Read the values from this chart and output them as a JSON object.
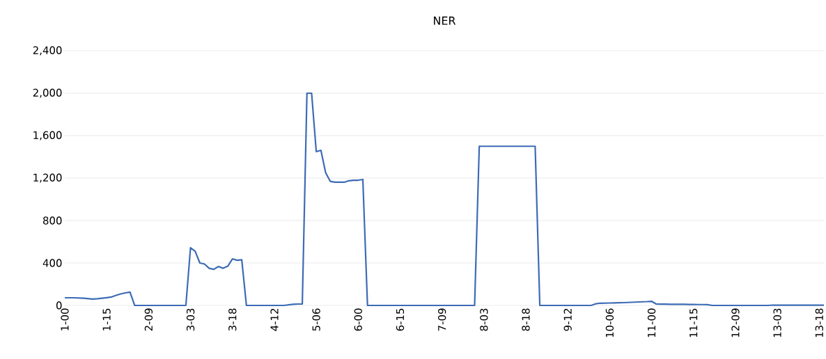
{
  "chart_data": {
    "type": "line",
    "title": "NER",
    "categories": [
      "1-00",
      null,
      null,
      null,
      null,
      null,
      null,
      null,
      null,
      "1-15",
      null,
      null,
      null,
      null,
      null,
      null,
      null,
      null,
      "2-09",
      null,
      null,
      null,
      null,
      null,
      null,
      null,
      null,
      "3-03",
      null,
      null,
      null,
      null,
      null,
      null,
      null,
      null,
      "3-18",
      null,
      null,
      null,
      null,
      null,
      null,
      null,
      null,
      "4-12",
      null,
      null,
      null,
      null,
      null,
      null,
      null,
      null,
      "5-06",
      null,
      null,
      null,
      null,
      null,
      null,
      null,
      null,
      "6-00",
      null,
      null,
      null,
      null,
      null,
      null,
      null,
      null,
      "6-15",
      null,
      null,
      null,
      null,
      null,
      null,
      null,
      null,
      "7-09",
      null,
      null,
      null,
      null,
      null,
      null,
      null,
      null,
      "8-03",
      null,
      null,
      null,
      null,
      null,
      null,
      null,
      null,
      "8-18",
      null,
      null,
      null,
      null,
      null,
      null,
      null,
      null,
      "9-12",
      null,
      null,
      null,
      null,
      null,
      null,
      null,
      null,
      "10-06",
      null,
      null,
      null,
      null,
      null,
      null,
      null,
      null,
      "11-00",
      null,
      null,
      null,
      null,
      null,
      null,
      null,
      null,
      "11-15",
      null,
      null,
      null,
      null,
      null,
      null,
      null,
      null,
      "12-09",
      null,
      null,
      null,
      null,
      null,
      null,
      null,
      null,
      "13-03",
      null,
      null,
      null,
      null,
      null,
      null,
      null,
      null,
      "13-18",
      null
    ],
    "series": [
      {
        "color": "#3d6bb5",
        "values": [
          72,
          72,
          72,
          70,
          68,
          64,
          60,
          63,
          68,
          73,
          79,
          95,
          108,
          118,
          125,
          0,
          0,
          0,
          0,
          0,
          0,
          0,
          0,
          0,
          0,
          0,
          0,
          544,
          511,
          400,
          390,
          350,
          340,
          367,
          350,
          370,
          439,
          425,
          430,
          0,
          0,
          0,
          0,
          0,
          0,
          0,
          0,
          0,
          5,
          10,
          13,
          13,
          2000,
          2000,
          1449,
          1462,
          1252,
          1170,
          1161,
          1161,
          1161,
          1175,
          1180,
          1180,
          1187,
          0,
          0,
          0,
          0,
          0,
          0,
          0,
          0,
          0,
          0,
          0,
          0,
          0,
          0,
          0,
          0,
          0,
          0,
          0,
          0,
          0,
          0,
          0,
          0,
          1500,
          1500,
          1500,
          1500,
          1500,
          1500,
          1500,
          1500,
          1500,
          1500,
          1500,
          1500,
          1500,
          0,
          0,
          0,
          0,
          0,
          0,
          0,
          0,
          0,
          0,
          0,
          0,
          15,
          21,
          22,
          23,
          24,
          25,
          26,
          28,
          30,
          32,
          34,
          36,
          39,
          13,
          12,
          12,
          11,
          11,
          10,
          10,
          9,
          9,
          8,
          8,
          7,
          0,
          0,
          0,
          0,
          0,
          0,
          0,
          0,
          0,
          0,
          0,
          0,
          0,
          3,
          3,
          3,
          3,
          3,
          3,
          3,
          3,
          3,
          3,
          3,
          3
        ]
      }
    ],
    "ylim": [
      0,
      2400
    ],
    "yticks": [
      0,
      {
        "value": 400,
        "label": "400"
      },
      {
        "value": 800,
        "label": "800"
      },
      {
        "value": 1200,
        "label": "1,200"
      },
      {
        "value": 1600,
        "label": "1,600"
      },
      {
        "value": 2000,
        "label": "2,000"
      },
      {
        "value": 2400,
        "label": "2,400"
      }
    ],
    "grid": "y"
  }
}
